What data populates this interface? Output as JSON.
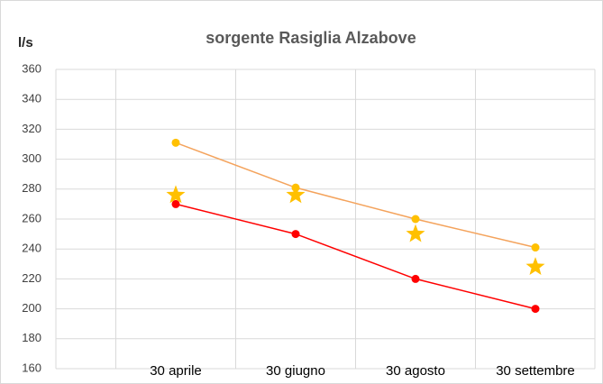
{
  "chart_data": {
    "type": "line",
    "title": "sorgente Rasiglia Alzabove",
    "y_label": "l/s",
    "categories": [
      null,
      "30 aprile",
      "30 giugno",
      "30 agosto",
      "30 settembre"
    ],
    "series": [
      {
        "color": "#f4a35c",
        "marker_color": "#ffc000",
        "marker": "circle",
        "line": true,
        "values": [
          null,
          311,
          281,
          260,
          241
        ]
      },
      {
        "color": "#ff0000",
        "marker_color": "#ff0000",
        "marker": "circle",
        "line": true,
        "values": [
          null,
          270,
          250,
          220,
          200
        ]
      },
      {
        "color": "#ffc000",
        "marker_color": "#ffc000",
        "marker": "star",
        "line": false,
        "values": [
          null,
          276,
          276,
          250,
          228
        ]
      }
    ],
    "ylim": [
      160,
      360
    ],
    "yticks": [
      160,
      180,
      200,
      220,
      240,
      260,
      280,
      300,
      320,
      340,
      360
    ],
    "grid": true
  }
}
